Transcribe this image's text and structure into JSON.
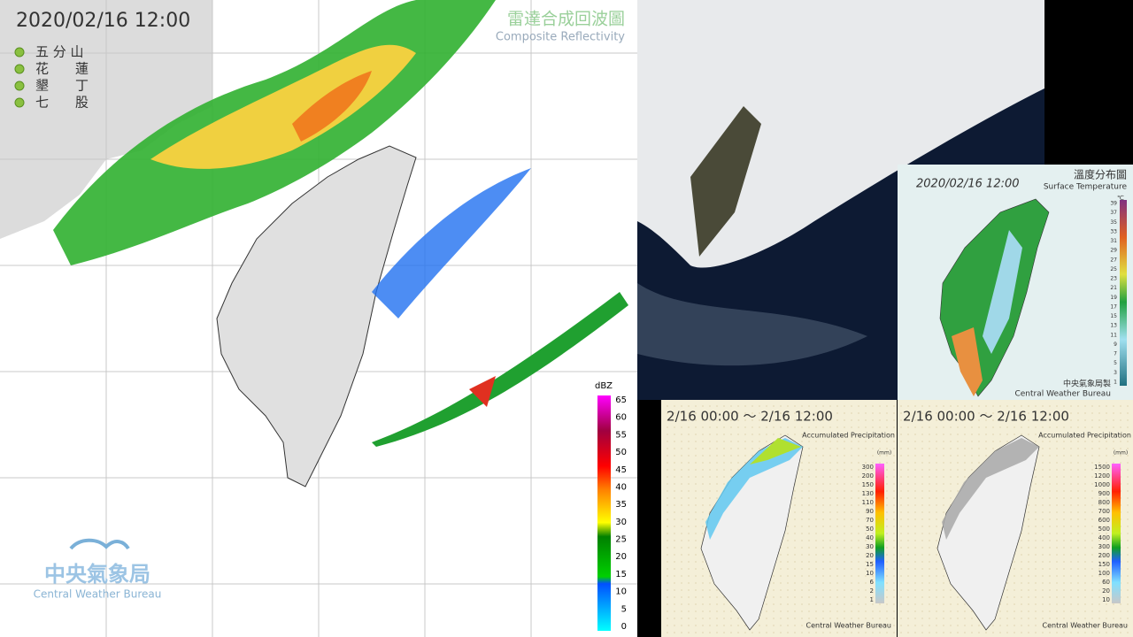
{
  "radar": {
    "time": "2020/02/16  12:00",
    "title": "雷達合成回波圖",
    "subtitle": "Composite Reflectivity",
    "stations": [
      "五 分 山",
      "花　　蓮",
      "墾　　丁",
      "七　　股"
    ],
    "legend": {
      "unit": "dBZ",
      "labels": [
        "65",
        "60",
        "55",
        "50",
        "45",
        "40",
        "35",
        "30",
        "25",
        "20",
        "15",
        "10",
        "5",
        "0"
      ]
    },
    "agency": "中央氣象局",
    "agency_en": "Central Weather Bureau"
  },
  "temperature": {
    "title": "溫度分布圖",
    "time": "2020/02/16 12:00",
    "subtitle": "Surface Temperature",
    "unit": "℃",
    "legend": [
      "39",
      "37",
      "35",
      "33",
      "31",
      "29",
      "27",
      "25",
      "23",
      "21",
      "19",
      "17",
      "15",
      "13",
      "11",
      "9",
      "7",
      "5",
      "3",
      "1"
    ],
    "agency": "中央氣象局製",
    "agency_en": "Central Weather Bureau"
  },
  "precipitation": [
    {
      "period": "2/16 00:00 ～ 2/16 12:00",
      "title": "Accumulated Precipitation",
      "unit": "(mm)",
      "legend": [
        "300",
        "200",
        "150",
        "130",
        "110",
        "90",
        "70",
        "50",
        "40",
        "30",
        "20",
        "15",
        "10",
        "6",
        "2",
        "1"
      ],
      "agency_en": "Central Weather Bureau"
    },
    {
      "period": "2/16 00:00 ～ 2/16 12:00",
      "title": "Accumulated Precipitation",
      "unit": "(mm)",
      "legend": [
        "1500",
        "1200",
        "1000",
        "900",
        "800",
        "700",
        "600",
        "500",
        "400",
        "300",
        "200",
        "150",
        "100",
        "60",
        "20",
        "10"
      ],
      "agency_en": "Central Weather Bureau"
    }
  ]
}
